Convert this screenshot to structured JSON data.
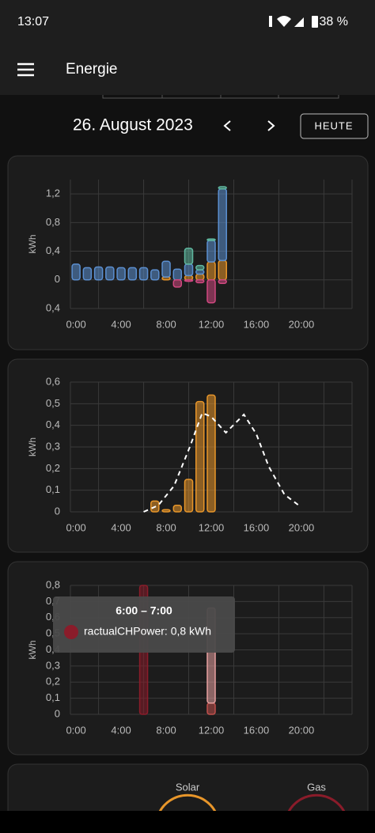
{
  "status_bar": {
    "time": "13:07",
    "battery": "38 %"
  },
  "app_bar": {
    "title": "Energie"
  },
  "date_nav": {
    "date": "26. August 2023",
    "button": "HEUTE"
  },
  "chart_data": [
    {
      "type": "bar",
      "ylabel": "kWh",
      "xlim": [
        -0.5,
        24.5
      ],
      "xticks": [
        {
          "value": 0,
          "label": "0:00"
        },
        {
          "value": 4,
          "label": "4:00"
        },
        {
          "value": 8,
          "label": "8:00"
        },
        {
          "value": 12,
          "label": "12:00"
        },
        {
          "value": 16,
          "label": "16:00"
        },
        {
          "value": 20,
          "label": "20:00"
        }
      ],
      "x_gridlines": [
        2,
        6,
        10,
        14,
        18,
        22
      ],
      "ylim": [
        -0.4,
        1.4
      ],
      "yticks": [
        {
          "value": -0.4,
          "label": "0,4"
        },
        0,
        {
          "value": 0.4,
          "label": "0,4"
        },
        {
          "value": 0.8,
          "label": "0,8"
        },
        {
          "value": 1.2,
          "label": "1,2"
        }
      ],
      "x": [
        0,
        1,
        2,
        3,
        4,
        5,
        6,
        7,
        8,
        9,
        10,
        11,
        12,
        13
      ],
      "series": [
        {
          "color": "#e8962a",
          "values": [
            null,
            null,
            null,
            null,
            null,
            null,
            null,
            null,
            0.04,
            null,
            0.06,
            0.08,
            0.25,
            0.27
          ]
        },
        {
          "color": "#5b8fd0",
          "values": [
            0.22,
            0.17,
            0.18,
            0.18,
            0.17,
            0.17,
            0.17,
            0.14,
            0.22,
            0.15,
            0.16,
            0.06,
            0.3,
            1.0
          ]
        },
        {
          "color": "#5fb8a0",
          "values": [
            null,
            null,
            null,
            null,
            null,
            null,
            null,
            null,
            null,
            null,
            0.22,
            0.06,
            0.02,
            0.03
          ]
        },
        {
          "color": "#d04880",
          "values": [
            null,
            null,
            null,
            null,
            null,
            null,
            null,
            null,
            null,
            -0.1,
            -0.02,
            -0.04,
            -0.32,
            -0.05
          ]
        }
      ]
    },
    {
      "type": "bar",
      "ylabel": "kWh",
      "xlim": [
        -0.5,
        24.5
      ],
      "xticks": [
        {
          "value": 0,
          "label": "0:00"
        },
        {
          "value": 4,
          "label": "4:00"
        },
        {
          "value": 8,
          "label": "8:00"
        },
        {
          "value": 12,
          "label": "12:00"
        },
        {
          "value": 16,
          "label": "16:00"
        },
        {
          "value": 20,
          "label": "20:00"
        }
      ],
      "x_gridlines": [
        2,
        6,
        10,
        14,
        18,
        22
      ],
      "ylim": [
        0,
        0.6
      ],
      "yticks": [
        0,
        {
          "value": 0.1,
          "label": "0,1"
        },
        {
          "value": 0.2,
          "label": "0,2"
        },
        {
          "value": 0.3,
          "label": "0,3"
        },
        {
          "value": 0.4,
          "label": "0,4"
        },
        {
          "value": 0.5,
          "label": "0,5"
        },
        {
          "value": 0.6,
          "label": "0,6"
        }
      ],
      "x": [
        7,
        8,
        9,
        10,
        11,
        12
      ],
      "series": [
        {
          "color": "#e8962a",
          "values": [
            0.05,
            0.01,
            0.03,
            0.15,
            0.51,
            0.54
          ]
        },
        {
          "type": "line",
          "dashed": true,
          "color": "#ffffff",
          "x": [
            6,
            7.3,
            8.7,
            10.1,
            11.2,
            12,
            13.3,
            14.9,
            16,
            17.1,
            18.5,
            19.9
          ],
          "values": [
            0,
            0.03,
            0.12,
            0.3,
            0.457,
            0.44,
            0.366,
            0.45,
            0.36,
            0.21,
            0.08,
            0.025
          ]
        }
      ]
    },
    {
      "type": "bar",
      "ylabel": "kWh",
      "xlim": [
        -0.5,
        24.5
      ],
      "xticks": [
        {
          "value": 0,
          "label": "0:00"
        },
        {
          "value": 4,
          "label": "4:00"
        },
        {
          "value": 8,
          "label": "8:00"
        },
        {
          "value": 12,
          "label": "12:00"
        },
        {
          "value": 16,
          "label": "16:00"
        },
        {
          "value": 20,
          "label": "20:00"
        }
      ],
      "x_gridlines": [
        2,
        6,
        10,
        14,
        18,
        22
      ],
      "ylim": [
        0,
        0.8
      ],
      "yticks": [
        0,
        {
          "value": 0.1,
          "label": "0,1"
        },
        {
          "value": 0.2,
          "label": "0,2"
        },
        {
          "value": 0.3,
          "label": "0,3"
        },
        {
          "value": 0.4,
          "label": "0,4"
        },
        {
          "value": 0.5,
          "label": "0,5"
        },
        {
          "value": 0.6,
          "label": "0,6"
        },
        {
          "value": 0.7,
          "label": "0,7"
        },
        {
          "value": 0.8,
          "label": "0,8"
        }
      ],
      "x": [
        6,
        12
      ],
      "series": [
        {
          "color": "#8a1c2a",
          "values": [
            0.8,
            null
          ]
        },
        {
          "color": "#c0504d",
          "values": [
            null,
            0.07
          ]
        },
        {
          "color": "#e8a0a0",
          "values": [
            null,
            0.59
          ]
        }
      ]
    }
  ],
  "tooltip": {
    "title": "6:00 – 7:00",
    "label": "ractualCHPower: 0,8 kWh",
    "color": "#8a1c2a"
  },
  "bottom_card": {
    "labels": [
      "Solar",
      "Gas"
    ]
  }
}
